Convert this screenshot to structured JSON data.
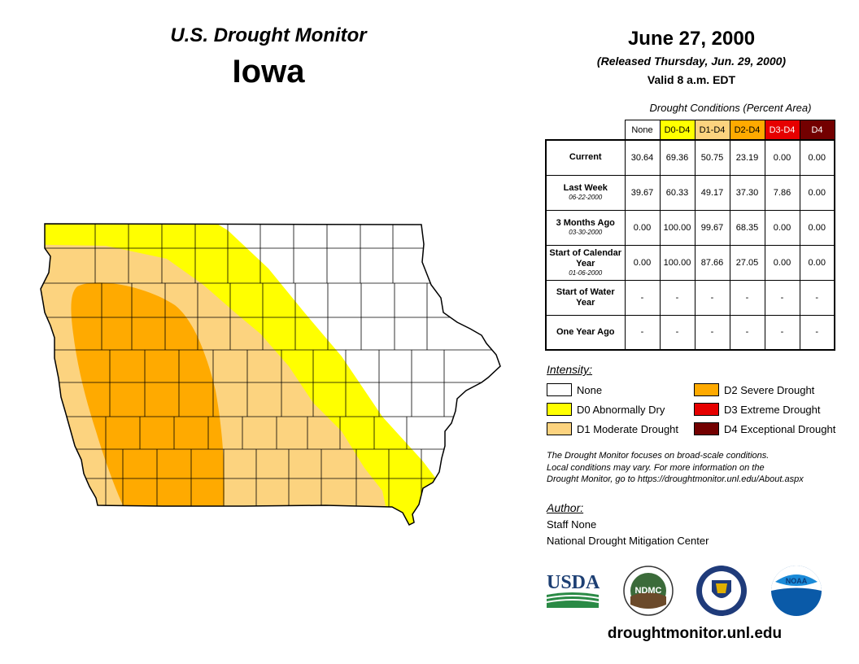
{
  "header": {
    "title": "U.S. Drought Monitor",
    "state": "Iowa",
    "date": "June 27, 2000",
    "released": "(Released Thursday, Jun. 29, 2000)",
    "valid": "Valid 8 a.m. EDT"
  },
  "table": {
    "caption": "Drought Conditions (Percent Area)",
    "columns": [
      {
        "label": "None",
        "bg": "#ffffff",
        "fg": "#000000"
      },
      {
        "label": "D0-D4",
        "bg": "#ffff00",
        "fg": "#000000"
      },
      {
        "label": "D1-D4",
        "bg": "#fcd37f",
        "fg": "#000000"
      },
      {
        "label": "D2-D4",
        "bg": "#ffaa00",
        "fg": "#000000"
      },
      {
        "label": "D3-D4",
        "bg": "#e60000",
        "fg": "#ffffff"
      },
      {
        "label": "D4",
        "bg": "#730000",
        "fg": "#ffffff"
      }
    ],
    "rows": [
      {
        "label": "Current",
        "sub": "",
        "values": [
          "30.64",
          "69.36",
          "50.75",
          "23.19",
          "0.00",
          "0.00"
        ]
      },
      {
        "label": "Last Week",
        "sub": "06-22-2000",
        "values": [
          "39.67",
          "60.33",
          "49.17",
          "37.30",
          "7.86",
          "0.00"
        ]
      },
      {
        "label": "3 Months Ago",
        "sub": "03-30-2000",
        "values": [
          "0.00",
          "100.00",
          "99.67",
          "68.35",
          "0.00",
          "0.00"
        ]
      },
      {
        "label": "Start of Calendar Year",
        "sub": "01-06-2000",
        "values": [
          "0.00",
          "100.00",
          "87.66",
          "27.05",
          "0.00",
          "0.00"
        ]
      },
      {
        "label": "Start of Water Year",
        "sub": "",
        "values": [
          "-",
          "-",
          "-",
          "-",
          "-",
          "-"
        ]
      },
      {
        "label": "One Year Ago",
        "sub": "",
        "values": [
          "-",
          "-",
          "-",
          "-",
          "-",
          "-"
        ]
      }
    ]
  },
  "legend": {
    "title": "Intensity:",
    "items": [
      {
        "label": "None",
        "color": "#ffffff"
      },
      {
        "label": "D0 Abnormally Dry",
        "color": "#ffff00"
      },
      {
        "label": "D1 Moderate Drought",
        "color": "#fcd37f"
      },
      {
        "label": "D2 Severe Drought",
        "color": "#ffaa00"
      },
      {
        "label": "D3 Extreme Drought",
        "color": "#e60000"
      },
      {
        "label": "D4 Exceptional Drought",
        "color": "#730000"
      }
    ]
  },
  "note": {
    "line1": "The Drought Monitor focuses on broad-scale conditions.",
    "line2": "Local conditions may vary. For more information on the",
    "line3": "Drought Monitor, go to https://droughtmonitor.unl.edu/About.aspx"
  },
  "author": {
    "title": "Author:",
    "name": "Staff None",
    "org": "National Drought Mitigation Center"
  },
  "logos": {
    "usda": "USDA",
    "ndmc": "NDMC",
    "noaa": "NOAA"
  },
  "footer": {
    "site": "droughtmonitor.unl.edu"
  }
}
